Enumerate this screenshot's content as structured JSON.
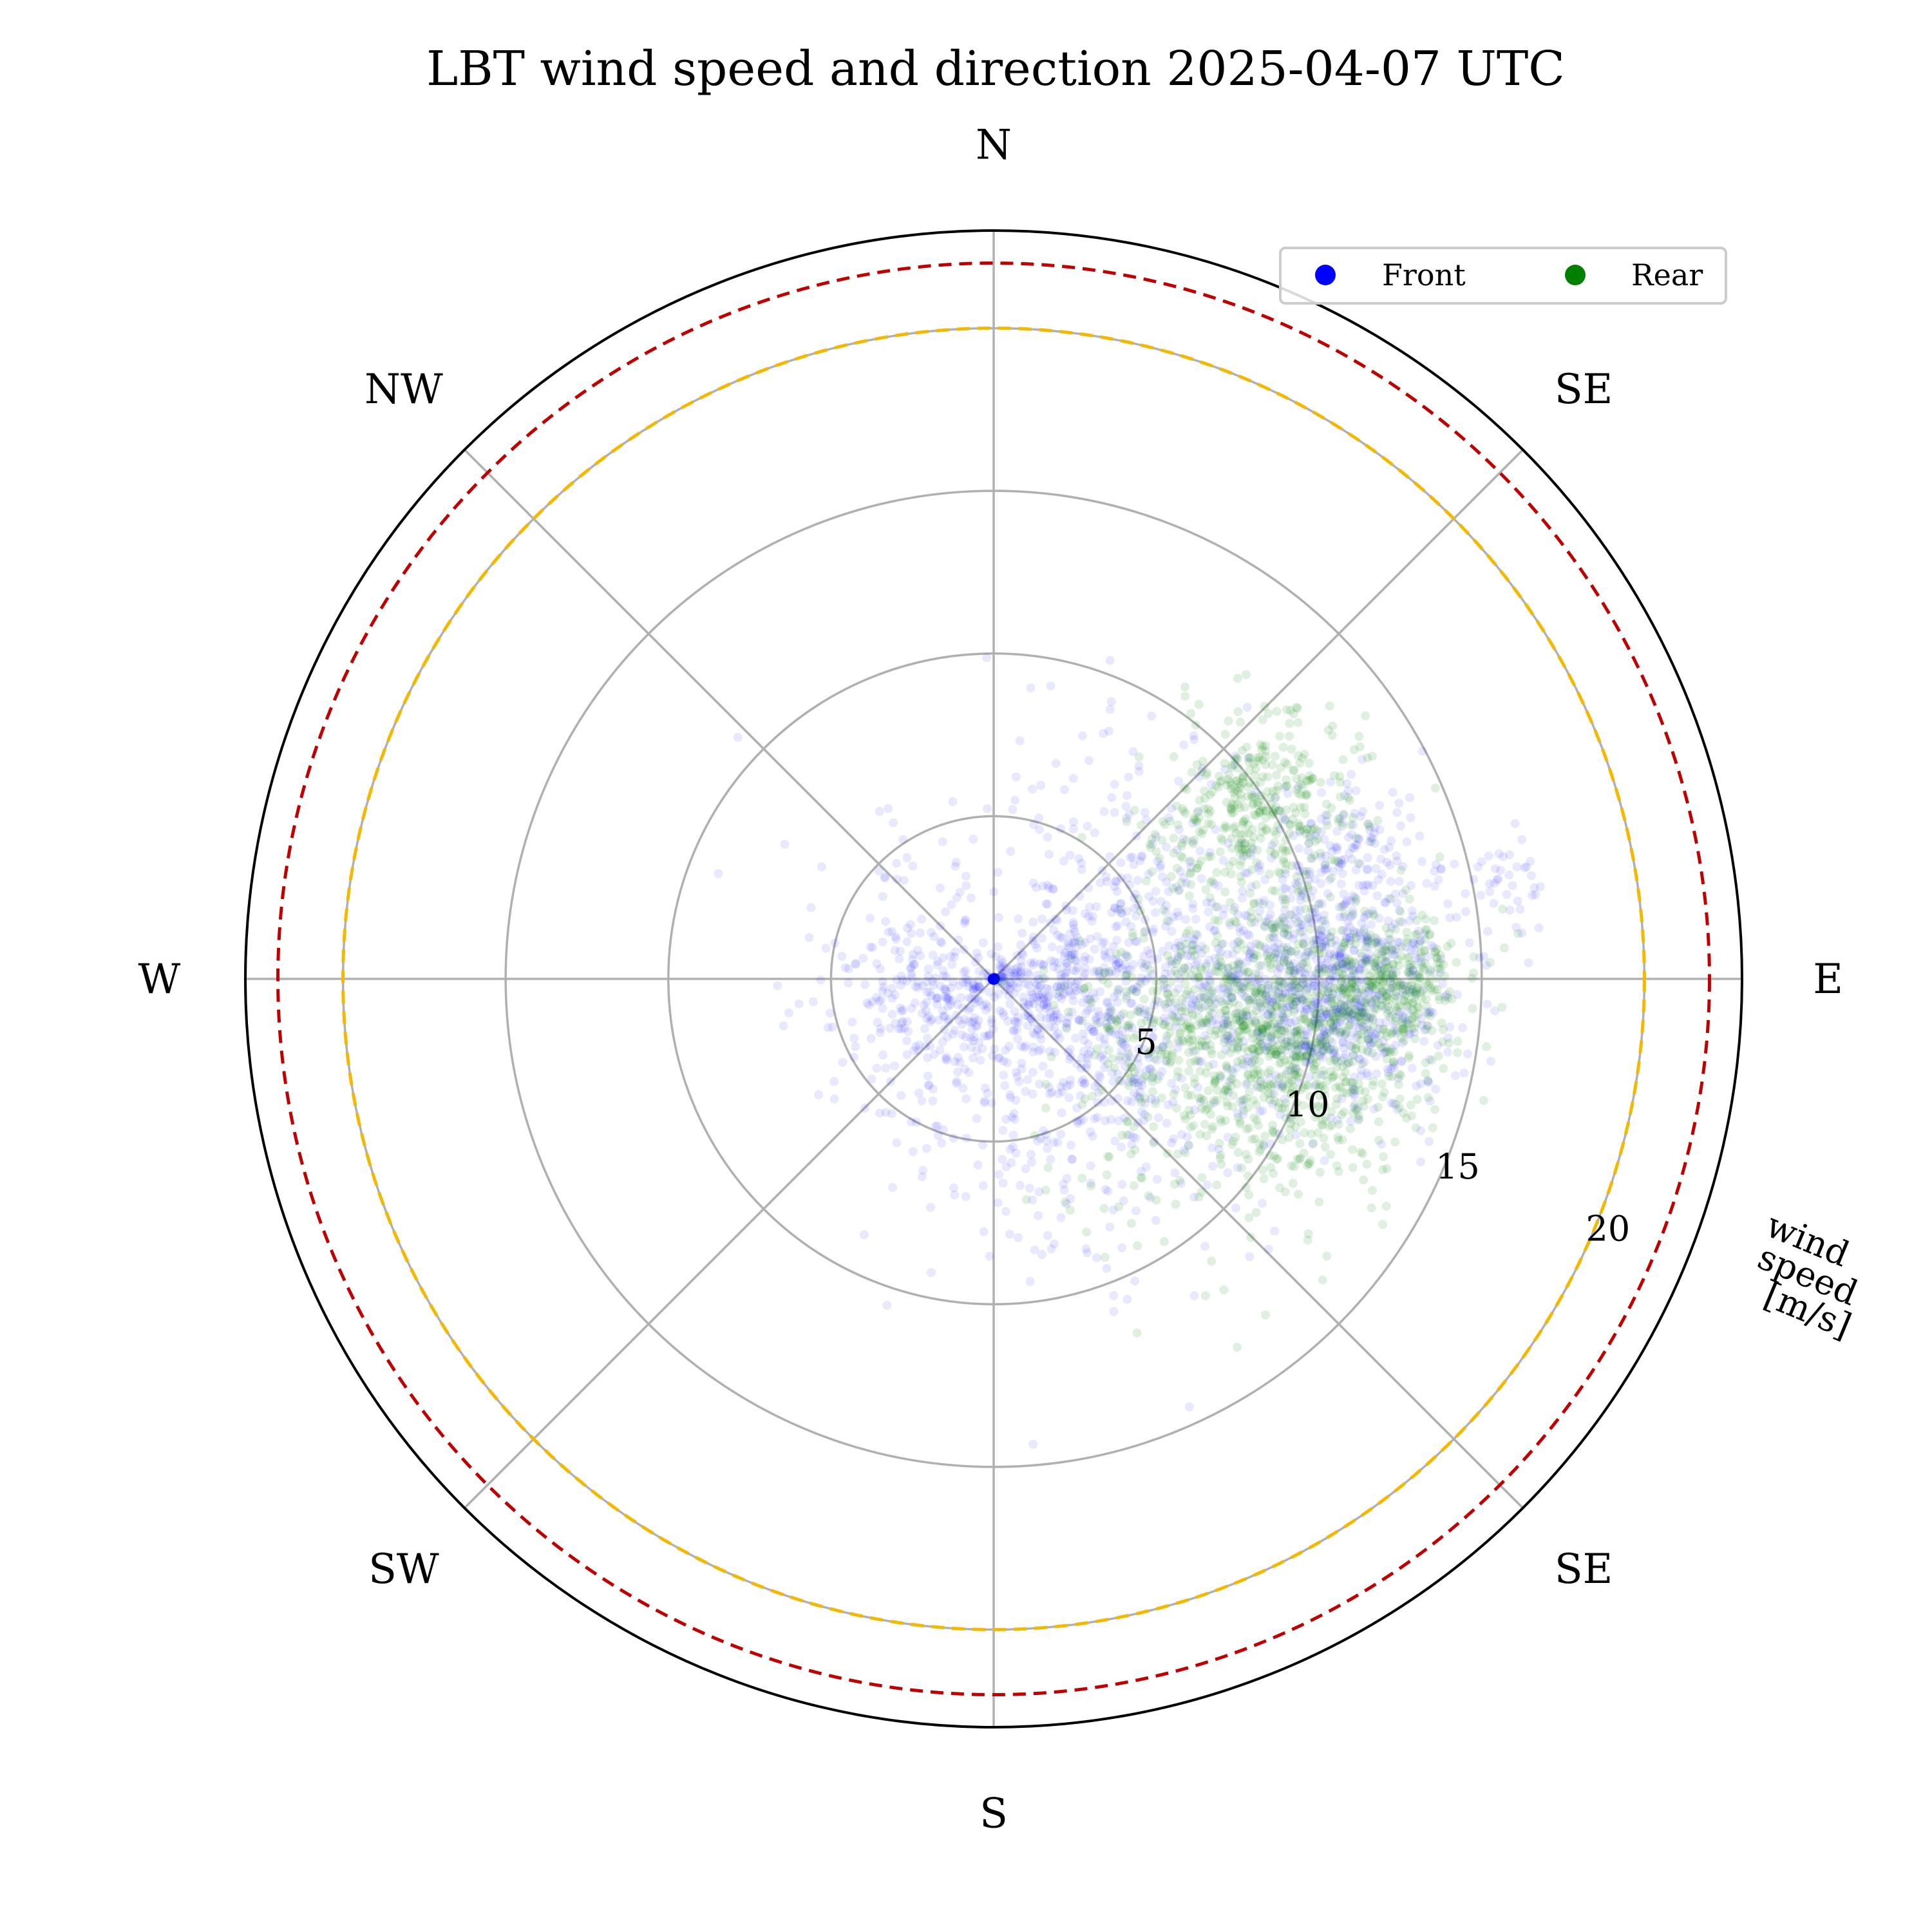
{
  "chart_data": {
    "type": "scatter",
    "projection": "polar",
    "title": "LBT wind speed and direction 2025-04-07 UTC",
    "radial_axis": {
      "label_lines": [
        "wind",
        "speed",
        "[m/s]"
      ],
      "ticks": [
        5,
        10,
        15,
        20
      ],
      "rlim": [
        0,
        23
      ]
    },
    "direction_labels": [
      {
        "label": "N",
        "angle_deg": 0
      },
      {
        "label": "SE",
        "angle_deg": 45
      },
      {
        "label": "E",
        "angle_deg": 90
      },
      {
        "label": "SE",
        "angle_deg": 135
      },
      {
        "label": "S",
        "angle_deg": 180
      },
      {
        "label": "SW",
        "angle_deg": 225
      },
      {
        "label": "W",
        "angle_deg": 270
      },
      {
        "label": "NW",
        "angle_deg": 315
      }
    ],
    "grid": true,
    "reference_circles": [
      {
        "radius": 20,
        "color": "#f5b800",
        "style": "dashed"
      },
      {
        "radius": 22,
        "color": "#c00000",
        "style": "dashed"
      }
    ],
    "legend": {
      "placement": "top-right"
    },
    "series": [
      {
        "name": "Front",
        "color": "#0000ff",
        "clusters": [
          {
            "direction_deg": 100,
            "speed": 4.5,
            "spread_deg": 45,
            "spread_speed": 3.0,
            "count": 1100
          },
          {
            "direction_deg": 250,
            "speed": 2.5,
            "spread_deg": 40,
            "spread_speed": 1.8,
            "count": 350
          },
          {
            "direction_deg": 92,
            "speed": 10.5,
            "spread_deg": 9,
            "spread_speed": 1.8,
            "count": 700
          },
          {
            "direction_deg": 72,
            "speed": 11.5,
            "spread_deg": 6,
            "spread_speed": 1.2,
            "count": 150
          },
          {
            "direction_deg": 80,
            "speed": 16.0,
            "spread_deg": 3,
            "spread_speed": 0.6,
            "count": 40
          }
        ]
      },
      {
        "name": "Rear",
        "color": "#008000",
        "clusters": [
          {
            "direction_deg": 100,
            "speed": 9.5,
            "spread_deg": 12,
            "spread_speed": 2.2,
            "count": 900
          },
          {
            "direction_deg": 57,
            "speed": 9.5,
            "spread_deg": 8,
            "spread_speed": 1.6,
            "count": 380
          },
          {
            "direction_deg": 110,
            "speed": 7.5,
            "spread_deg": 25,
            "spread_speed": 2.5,
            "count": 350
          },
          {
            "direction_deg": 90,
            "speed": 12.5,
            "spread_deg": 4,
            "spread_speed": 1.0,
            "count": 220
          }
        ]
      }
    ]
  }
}
